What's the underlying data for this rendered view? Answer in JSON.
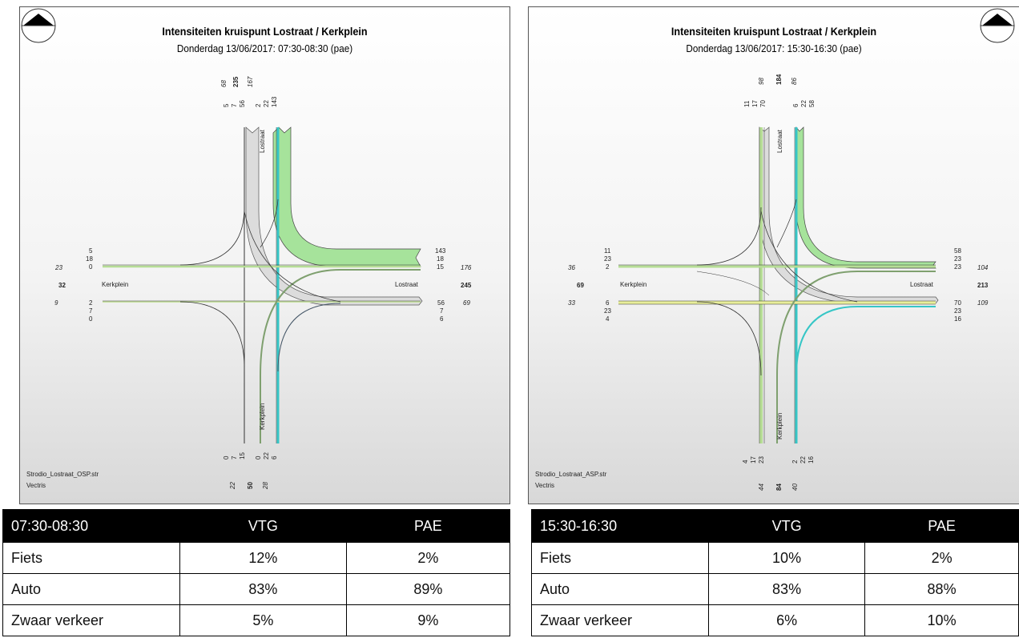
{
  "diagrams": [
    {
      "title": "Intensiteiten kruispunt Lostraat / Kerkplein",
      "subtitle": "Donderdag 13/06/2017: 07:30-08:30 (pae)",
      "file": "Strodio_Lostraat_OSP.str",
      "vendor": "Vectris",
      "streets": {
        "north": "Lostraat",
        "south": "Kerkplein",
        "west": "Kerkplein",
        "east": "Lostraat"
      },
      "north": {
        "out": "68",
        "total": "235",
        "in": "167",
        "left_lane_vals": [
          "5",
          "7",
          "56"
        ],
        "right_lane_vals": [
          "2",
          "22",
          "143"
        ]
      },
      "south": {
        "out": "22",
        "total": "50",
        "in": "28",
        "left_lane_vals": [
          "0",
          "7",
          "15"
        ],
        "right_lane_vals": [
          "0",
          "22",
          "6"
        ]
      },
      "west": {
        "in": "23",
        "total": "32",
        "out": "9",
        "upper_vals": [
          "5",
          "18",
          "0"
        ],
        "lower_vals": [
          "2",
          "7",
          "0"
        ]
      },
      "east": {
        "in": "176",
        "total": "245",
        "out": "69",
        "upper_vals": [
          "143",
          "18",
          "15"
        ],
        "lower_vals": [
          "56",
          "7",
          "6"
        ]
      },
      "colors": {
        "ne": "#a6e39b",
        "nw": "#d9d9d9",
        "vert": "#36c6c6",
        "ws": "#c9e3a4"
      }
    },
    {
      "title": "Intensiteiten kruispunt Lostraat / Kerkplein",
      "subtitle": "Donderdag 13/06/2017: 15:30-16:30 (pae)",
      "file": "Strodio_Lostraat_ASP.str",
      "vendor": "Vectris",
      "streets": {
        "north": "Lostraat",
        "south": "Kerkplein",
        "west": "Kerkplein",
        "east": "Lostraat"
      },
      "north": {
        "out": "98",
        "total": "184",
        "in": "86",
        "left_lane_vals": [
          "11",
          "17",
          "70"
        ],
        "right_lane_vals": [
          "6",
          "22",
          "58"
        ]
      },
      "south": {
        "out": "44",
        "total": "84",
        "in": "40",
        "left_lane_vals": [
          "4",
          "17",
          "23"
        ],
        "right_lane_vals": [
          "2",
          "22",
          "16"
        ]
      },
      "west": {
        "in": "36",
        "total": "69",
        "out": "33",
        "upper_vals": [
          "11",
          "23",
          "2"
        ],
        "lower_vals": [
          "6",
          "23",
          "4"
        ]
      },
      "east": {
        "in": "104",
        "total": "213",
        "out": "109",
        "upper_vals": [
          "58",
          "23",
          "23"
        ],
        "lower_vals": [
          "70",
          "23",
          "16"
        ]
      },
      "colors": {
        "ne": "#a6e39b",
        "nw": "#d9d9d9",
        "vert": "#36c6c6",
        "ws": "#e8ee9a"
      }
    }
  ],
  "tables": [
    {
      "period": "07:30-08:30",
      "col_vtg": "VTG",
      "col_pae": "PAE",
      "rows": [
        {
          "label": "Fiets",
          "vtg": "12%",
          "pae": "2%"
        },
        {
          "label": "Auto",
          "vtg": "83%",
          "pae": "89%"
        },
        {
          "label": "Zwaar verkeer",
          "vtg": "5%",
          "pae": "9%"
        }
      ]
    },
    {
      "period": "15:30-16:30",
      "col_vtg": "VTG",
      "col_pae": "PAE",
      "rows": [
        {
          "label": "Fiets",
          "vtg": "10%",
          "pae": "2%"
        },
        {
          "label": "Auto",
          "vtg": "83%",
          "pae": "88%"
        },
        {
          "label": "Zwaar verkeer",
          "vtg": "6%",
          "pae": "10%"
        }
      ]
    }
  ]
}
